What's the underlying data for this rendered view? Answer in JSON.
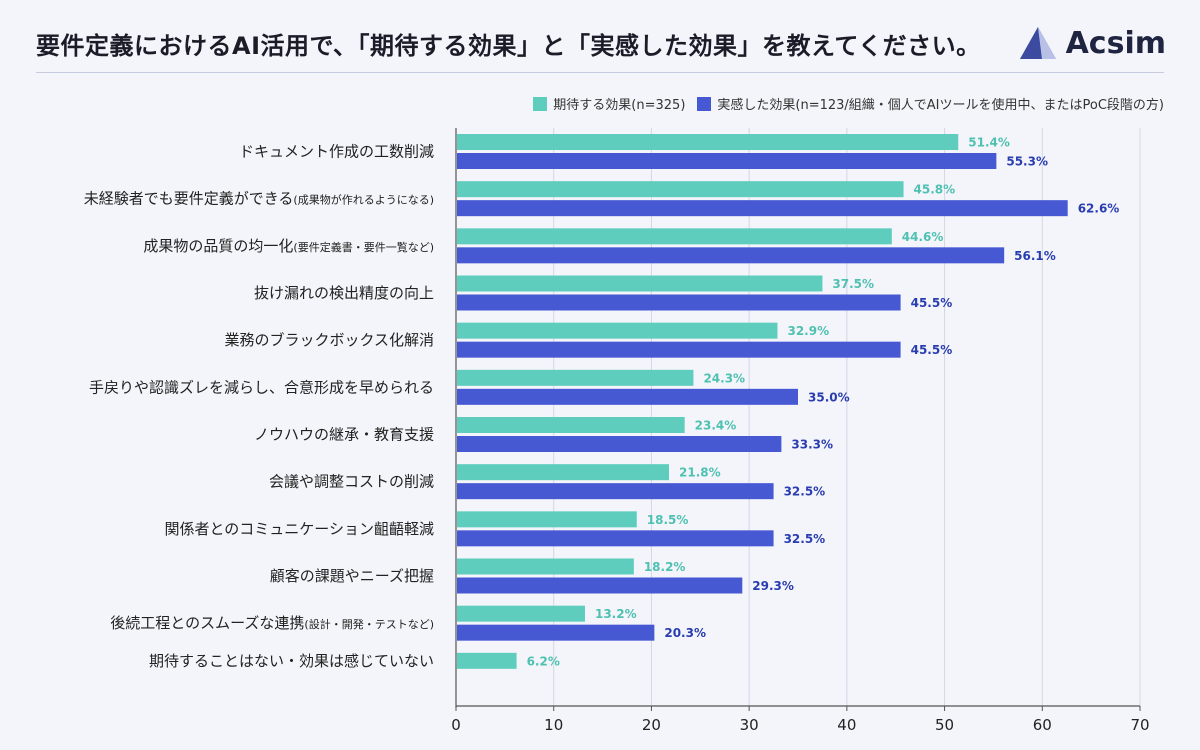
{
  "header": {
    "title": "要件定義におけるAI活用で、「期待する効果」と「実感した効果」を教えてください。",
    "logo_text": "Acsim"
  },
  "colors": {
    "expected": "#5ecdbd",
    "actual": "#4659d3",
    "expected_label": "#4fc1b1",
    "actual_label": "#2a3db0"
  },
  "chart_data": {
    "type": "bar",
    "orientation": "horizontal",
    "title": "",
    "xlabel": "",
    "ylabel": "",
    "xlim": [
      0,
      70
    ],
    "xticks": [
      0,
      10,
      20,
      30,
      40,
      50,
      60,
      70
    ],
    "grid": true,
    "legend_position": "top-right",
    "categories": [
      {
        "main": "ドキュメント作成の工数削減",
        "sub": ""
      },
      {
        "main": "未経験者でも要件定義ができる",
        "sub": "(成果物が作れるようになる)"
      },
      {
        "main": "成果物の品質の均一化",
        "sub": "(要件定義書・要件一覧など)"
      },
      {
        "main": "抜け漏れの検出精度の向上",
        "sub": ""
      },
      {
        "main": "業務のブラックボックス化解消",
        "sub": ""
      },
      {
        "main": "手戻りや認識ズレを減らし、合意形成を早められる",
        "sub": ""
      },
      {
        "main": "ノウハウの継承・教育支援",
        "sub": ""
      },
      {
        "main": "会議や調整コストの削減",
        "sub": ""
      },
      {
        "main": "関係者とのコミュニケーション齟齬軽減",
        "sub": ""
      },
      {
        "main": "顧客の課題やニーズ把握",
        "sub": ""
      },
      {
        "main": "後続工程とのスムーズな連携",
        "sub": "(設計・開発・テストなど)"
      },
      {
        "main": "期待することはない・効果は感じていない",
        "sub": ""
      }
    ],
    "series": [
      {
        "name": "期待する効果(n=325)",
        "values": [
          51.4,
          45.8,
          44.6,
          37.5,
          32.9,
          24.3,
          23.4,
          21.8,
          18.5,
          18.2,
          13.2,
          6.2
        ],
        "labels": [
          "51.4%",
          "45.8%",
          "44.6%",
          "37.5%",
          "32.9%",
          "24.3%",
          "23.4%",
          "21.8%",
          "18.5%",
          "18.2%",
          "13.2%",
          "6.2%"
        ]
      },
      {
        "name": "実感した効果(n=123/組織・個人でAIツールを使用中、またはPoC段階の方)",
        "values": [
          55.3,
          62.6,
          56.1,
          45.5,
          45.5,
          35.0,
          33.3,
          32.5,
          32.5,
          29.3,
          20.3,
          null
        ],
        "labels": [
          "55.3%",
          "62.6%",
          "56.1%",
          "45.5%",
          "45.5%",
          "35.0%",
          "33.3%",
          "32.5%",
          "32.5%",
          "29.3%",
          "20.3%",
          ""
        ]
      }
    ]
  }
}
